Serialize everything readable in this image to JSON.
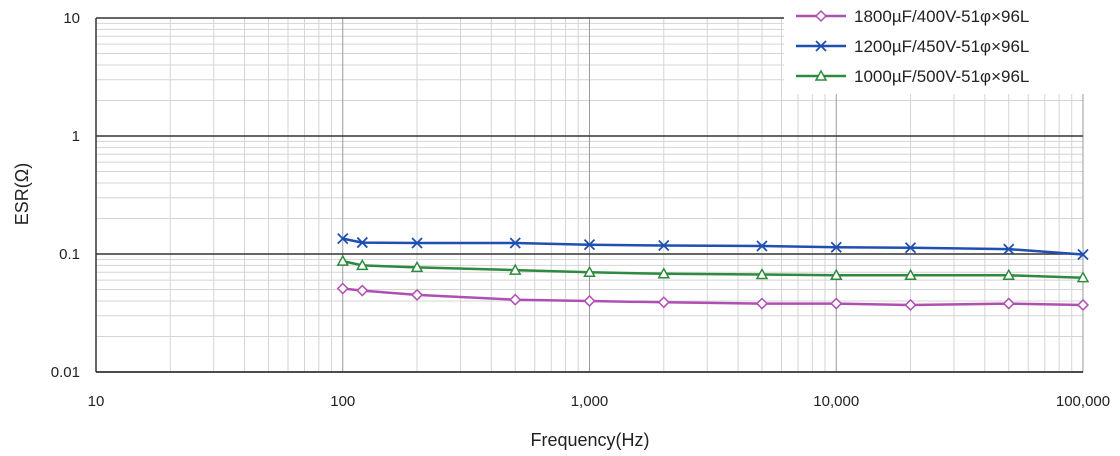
{
  "chart_data": {
    "type": "line",
    "xscale": "log",
    "yscale": "log",
    "xlim": [
      10,
      100000
    ],
    "ylim": [
      0.01,
      10
    ],
    "xlabel": "Frequency(Hz)",
    "ylabel": "ESR(Ω)",
    "title": "",
    "grid": true,
    "legend_position": "top-right",
    "x_ticks": [
      10,
      100,
      1000,
      10000,
      100000
    ],
    "x_tick_labels": [
      "10",
      "100",
      "1,000",
      "10,000",
      "100,000"
    ],
    "y_ticks": [
      0.01,
      0.1,
      1,
      10
    ],
    "y_tick_labels": [
      "0.01",
      "0.1",
      "1",
      "10"
    ],
    "series": [
      {
        "name": "1800µF/400V-51φ×96L",
        "color": "#b04fb3",
        "marker": "diamond",
        "x": [
          100,
          120,
          200,
          500,
          1000,
          2000,
          5000,
          10000,
          20000,
          50000,
          100000
        ],
        "y": [
          0.051,
          0.049,
          0.045,
          0.041,
          0.04,
          0.039,
          0.038,
          0.038,
          0.037,
          0.038,
          0.037
        ]
      },
      {
        "name": "1200µF/450V-51φ×96L",
        "color": "#1f4fb0",
        "marker": "x",
        "x": [
          100,
          120,
          200,
          500,
          1000,
          2000,
          5000,
          10000,
          20000,
          50000,
          100000
        ],
        "y": [
          0.135,
          0.125,
          0.124,
          0.124,
          0.12,
          0.118,
          0.117,
          0.114,
          0.113,
          0.11,
          0.099
        ]
      },
      {
        "name": "1000µF/500V-51φ×96L",
        "color": "#2e8a3e",
        "marker": "triangle",
        "x": [
          100,
          120,
          200,
          500,
          1000,
          2000,
          5000,
          10000,
          20000,
          50000,
          100000
        ],
        "y": [
          0.087,
          0.08,
          0.077,
          0.073,
          0.07,
          0.068,
          0.067,
          0.066,
          0.066,
          0.066,
          0.063
        ]
      }
    ]
  }
}
